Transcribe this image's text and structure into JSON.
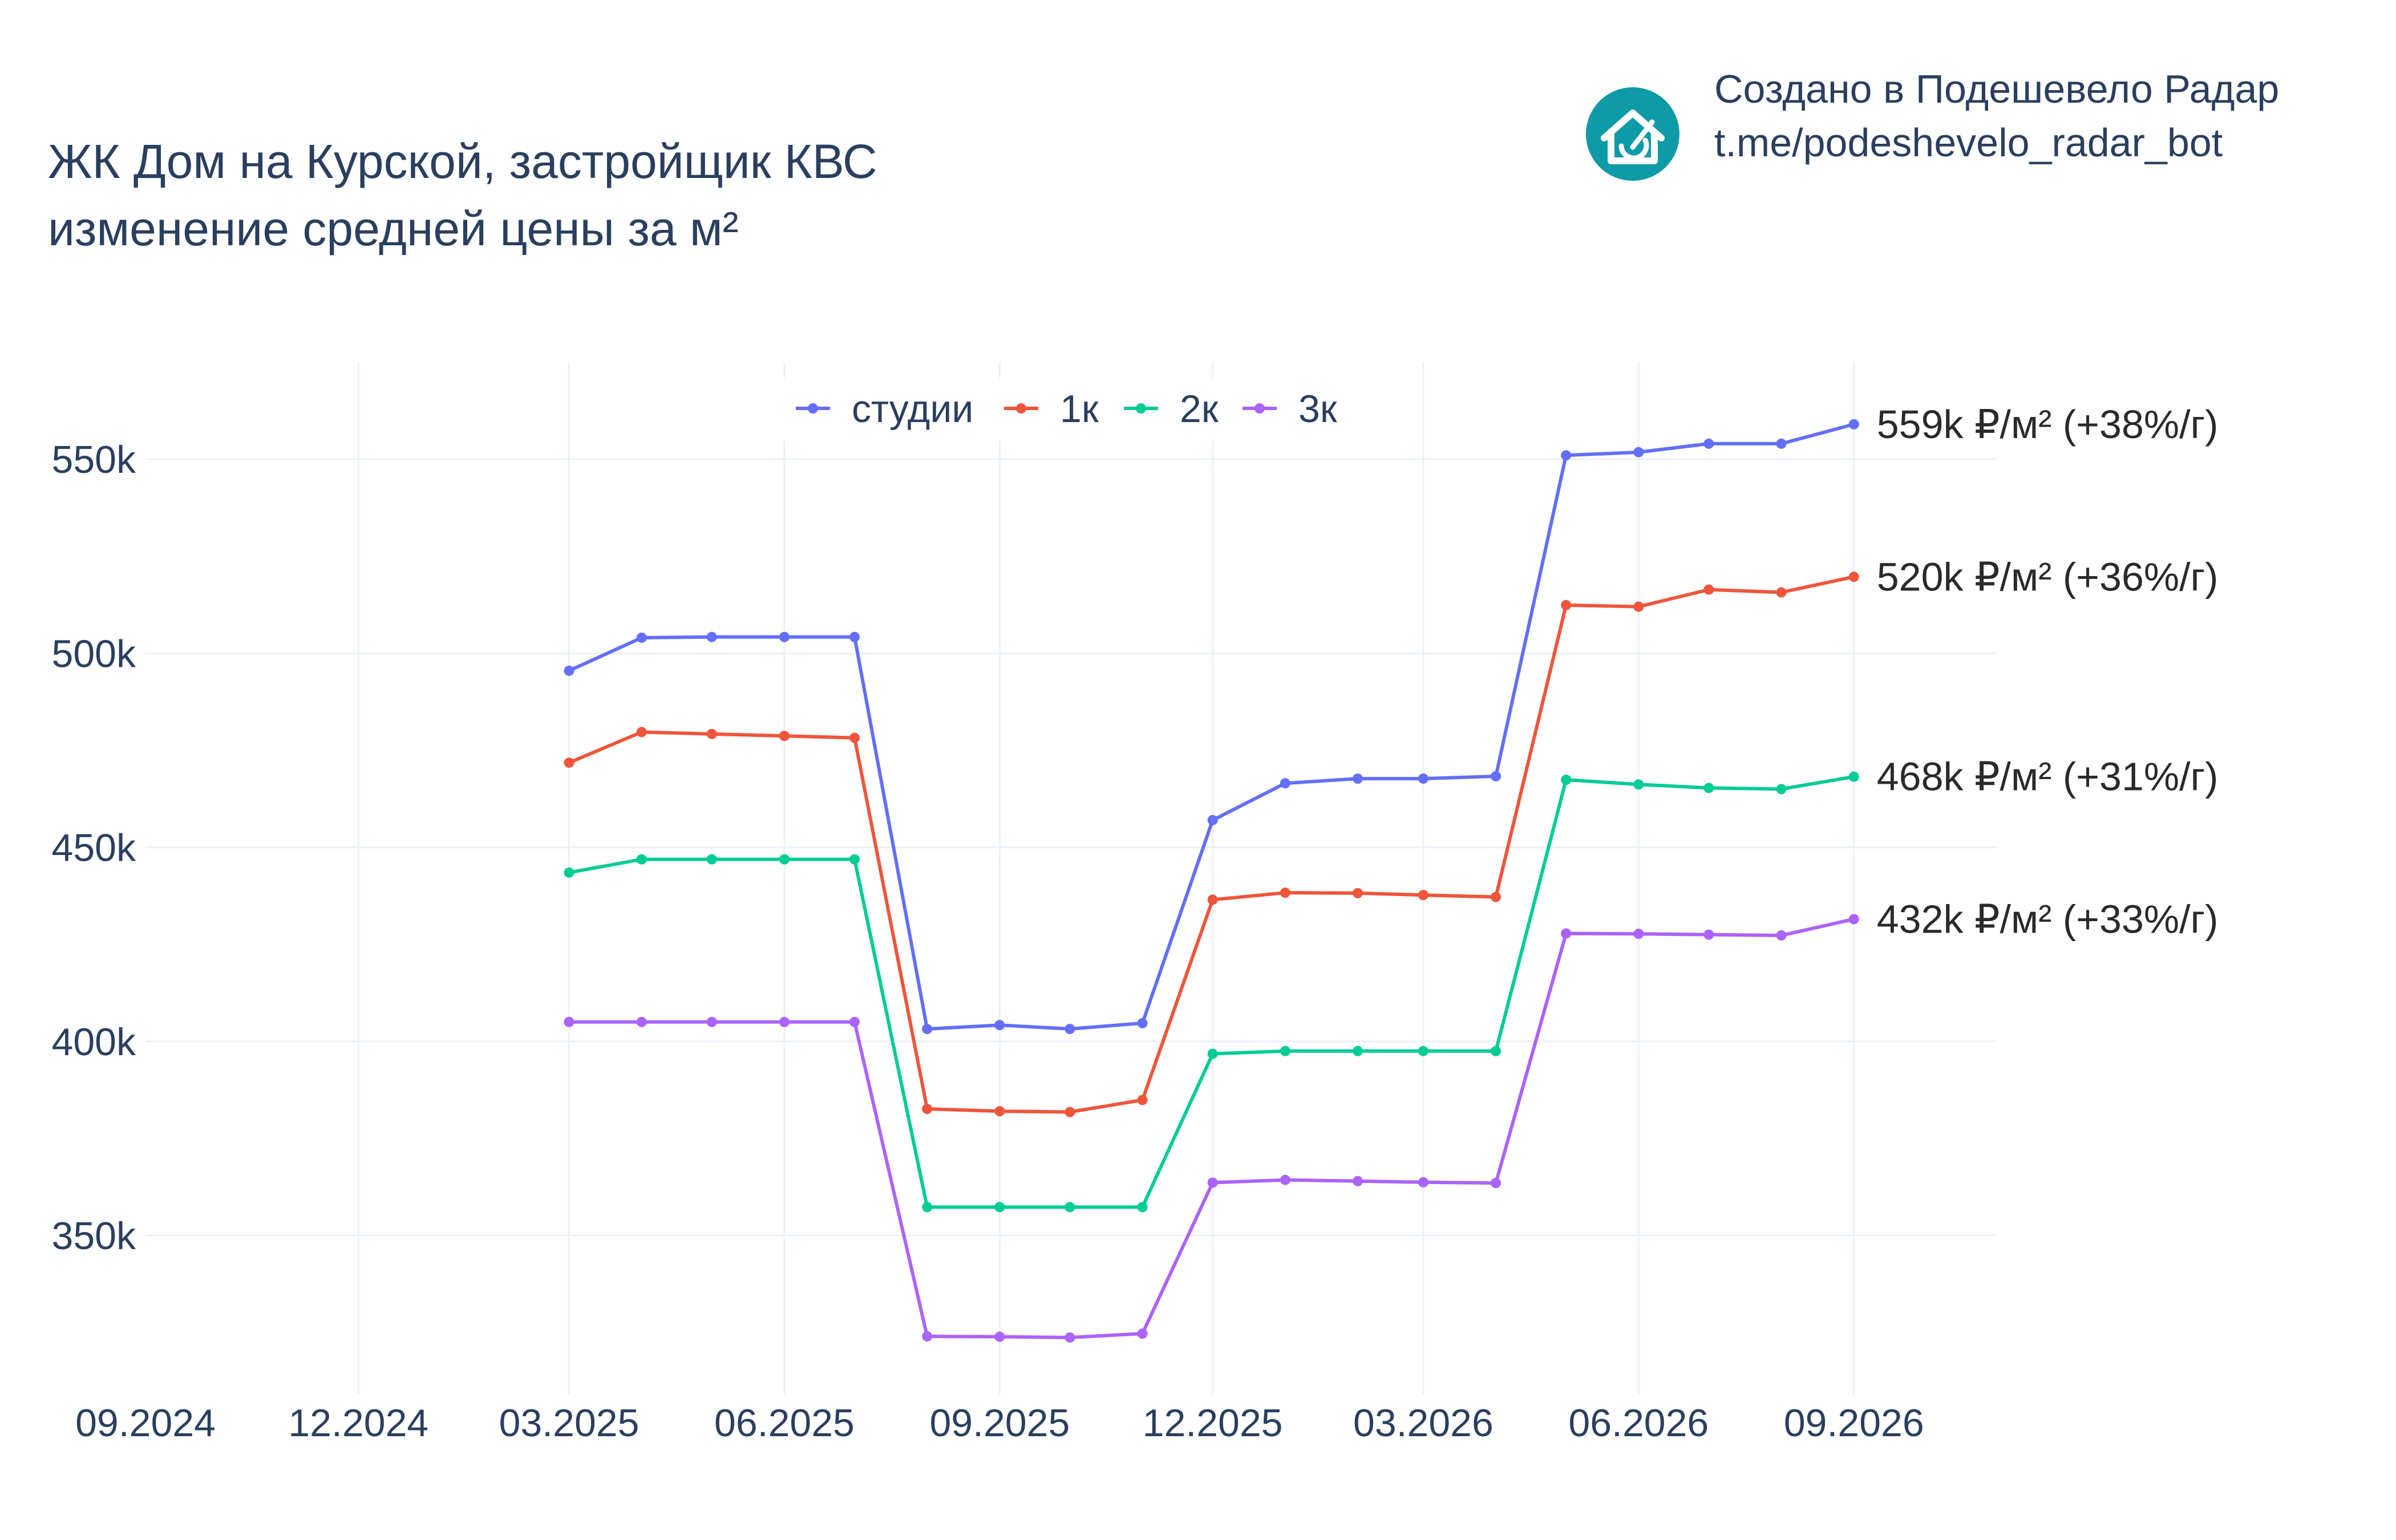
{
  "header": {
    "title_line1": "ЖК Дом на Курской, застройщик КВС",
    "title_line2": "изменение средней цены за м²"
  },
  "branding": {
    "line1": "Создано в Подешевело Радар",
    "line2": "t.me/podeshevelo_radar_bot",
    "icon": "house-logo-icon",
    "icon_color": "#0e9aa7"
  },
  "chart_data": {
    "type": "line",
    "title": "ЖК Дом на Курской, застройщик КВС изменение средней цены за м²",
    "xlabel": "",
    "ylabel": "",
    "x_axis_type": "date",
    "xlim": [
      "2024-09-01",
      "2026-11-01"
    ],
    "ylim": [
      309000,
      575000
    ],
    "x_ticks": [
      {
        "date": "2024-09-01",
        "label": "09.2024"
      },
      {
        "date": "2024-12-01",
        "label": "12.2024"
      },
      {
        "date": "2025-03-01",
        "label": "03.2025"
      },
      {
        "date": "2025-06-01",
        "label": "06.2025"
      },
      {
        "date": "2025-09-01",
        "label": "09.2025"
      },
      {
        "date": "2025-12-01",
        "label": "12.2025"
      },
      {
        "date": "2026-03-01",
        "label": "03.2026"
      },
      {
        "date": "2026-06-01",
        "label": "06.2026"
      },
      {
        "date": "2026-09-01",
        "label": "09.2026"
      }
    ],
    "y_ticks": [
      {
        "value": 350000,
        "label": "350k"
      },
      {
        "value": 400000,
        "label": "400k"
      },
      {
        "value": 450000,
        "label": "450k"
      },
      {
        "value": 500000,
        "label": "500k"
      },
      {
        "value": 550000,
        "label": "550k"
      }
    ],
    "grid": true,
    "legend_position": "top-center",
    "x": [
      "2025-03-01",
      "2025-04-01",
      "2025-05-01",
      "2025-06-01",
      "2025-07-01",
      "2025-08-01",
      "2025-09-01",
      "2025-10-01",
      "2025-11-01",
      "2025-12-01",
      "2026-01-01",
      "2026-02-01",
      "2026-03-01",
      "2026-04-01",
      "2026-05-01",
      "2026-06-01",
      "2026-07-01",
      "2026-08-01",
      "2026-09-01"
    ],
    "series": [
      {
        "name": "студии",
        "color": "#636efa",
        "values": [
          495500,
          504000,
          504200,
          504200,
          504200,
          403200,
          404200,
          403200,
          404700,
          457000,
          466500,
          467700,
          467700,
          468300,
          551000,
          551800,
          554000,
          554000,
          559000
        ],
        "end_label": "559k ₽/м² (+38%/г)"
      },
      {
        "name": "1к",
        "color": "#ef553b",
        "values": [
          471800,
          479700,
          479200,
          478700,
          478200,
          382600,
          382000,
          381800,
          384900,
          436500,
          438300,
          438200,
          437700,
          437200,
          512400,
          512000,
          516400,
          515700,
          519700
        ],
        "end_label": "520k ₽/м² (+36%/г)"
      },
      {
        "name": "2к",
        "color": "#00cc96",
        "values": [
          443500,
          446900,
          446900,
          446900,
          446900,
          357300,
          357300,
          357300,
          357300,
          396800,
          397500,
          397500,
          397500,
          397500,
          467400,
          466200,
          465300,
          465000,
          468200
        ],
        "end_label": "468k ₽/м² (+31%/г)"
      },
      {
        "name": "3к",
        "color": "#ab63fa",
        "values": [
          405000,
          405000,
          405000,
          405000,
          405000,
          324000,
          323900,
          323700,
          324700,
          363600,
          364300,
          364000,
          363700,
          363500,
          427800,
          427700,
          427500,
          427300,
          431500
        ],
        "end_label": "432k ₽/м² (+33%/г)"
      }
    ]
  }
}
